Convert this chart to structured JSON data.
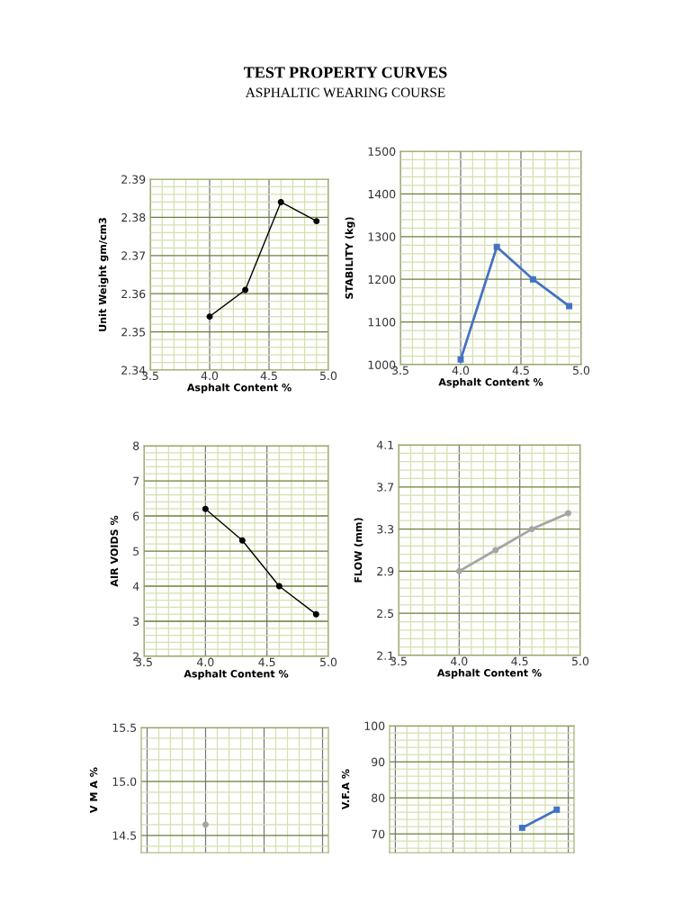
{
  "chart_data": [
    {
      "type": "line",
      "title": "TEST PROPERTY CURVES",
      "subtitle": "ASPHALTIC WEARING COURSE",
      "xlabel": "Asphalt Content %",
      "ylabel": "Unit Weight gm/cm3",
      "x": [
        4.0,
        4.3,
        4.6,
        4.9
      ],
      "series": [
        {
          "color": "#000000",
          "values": [
            2.354,
            2.361,
            2.384,
            2.379
          ]
        }
      ],
      "xlim": [
        3.5,
        5.0
      ],
      "xticks": [
        {
          "value": 3.5,
          "label": "3.5"
        },
        {
          "value": 3.6,
          "label": null
        },
        {
          "value": 3.7,
          "label": null
        },
        {
          "value": 3.8,
          "label": null
        },
        {
          "value": 3.9,
          "label": null
        },
        {
          "value": 4.0,
          "label": "4.0"
        },
        {
          "value": 4.1,
          "label": null
        },
        {
          "value": 4.2,
          "label": null
        },
        {
          "value": 4.3,
          "label": null
        },
        {
          "value": 4.4,
          "label": null
        },
        {
          "value": 4.5,
          "label": "4.5"
        },
        {
          "value": 4.6,
          "label": null
        },
        {
          "value": 4.7,
          "label": null
        },
        {
          "value": 4.8,
          "label": null
        },
        {
          "value": 4.9,
          "label": null
        },
        {
          "value": 5.0,
          "label": "5.0"
        }
      ],
      "ylim": [
        2.34,
        2.39
      ],
      "yticks": [
        2.34,
        {
          "value": 2.342,
          "label": null
        },
        {
          "value": 2.344,
          "label": null
        },
        {
          "value": 2.346,
          "label": null
        },
        {
          "value": 2.348,
          "label": null
        },
        2.35,
        {
          "value": 2.352,
          "label": null
        },
        {
          "value": 2.354,
          "label": null
        },
        {
          "value": 2.356,
          "label": null
        },
        {
          "value": 2.358,
          "label": null
        },
        2.36,
        {
          "value": 2.362,
          "label": null
        },
        {
          "value": 2.364,
          "label": null
        },
        {
          "value": 2.366,
          "label": null
        },
        {
          "value": 2.368,
          "label": null
        },
        2.37,
        {
          "value": 2.372,
          "label": null
        },
        {
          "value": 2.374,
          "label": null
        },
        {
          "value": 2.376,
          "label": null
        },
        {
          "value": 2.378,
          "label": null
        },
        2.38,
        {
          "value": 2.382,
          "label": null
        },
        {
          "value": 2.384,
          "label": null
        },
        {
          "value": 2.386,
          "label": null
        },
        {
          "value": 2.388,
          "label": null
        },
        2.39
      ],
      "grid": true,
      "marker": "circle",
      "line_style": "solid"
    },
    {
      "type": "line",
      "xlabel": "Asphalt Content %",
      "ylabel": "STABILITY (kg)",
      "x": [
        4.0,
        4.3,
        4.6,
        4.9
      ],
      "series": [
        {
          "color": "#4472c4",
          "values": [
            1012,
            1276,
            1200,
            1137
          ]
        }
      ],
      "xlim": [
        3.5,
        5.0
      ],
      "xticks": [
        {
          "value": 3.5,
          "label": "3.5"
        },
        {
          "value": 3.6,
          "label": null
        },
        {
          "value": 3.7,
          "label": null
        },
        {
          "value": 3.8,
          "label": null
        },
        {
          "value": 3.9,
          "label": null
        },
        {
          "value": 4.0,
          "label": "4.0"
        },
        {
          "value": 4.1,
          "label": null
        },
        {
          "value": 4.2,
          "label": null
        },
        {
          "value": 4.3,
          "label": null
        },
        {
          "value": 4.4,
          "label": null
        },
        {
          "value": 4.5,
          "label": "4.5"
        },
        {
          "value": 4.6,
          "label": null
        },
        {
          "value": 4.7,
          "label": null
        },
        {
          "value": 4.8,
          "label": null
        },
        {
          "value": 4.9,
          "label": null
        },
        {
          "value": 5.0,
          "label": "5.0"
        }
      ],
      "ylim": [
        1000,
        1500
      ],
      "yticks": [
        1000,
        {
          "value": 1020,
          "label": null
        },
        {
          "value": 1040,
          "label": null
        },
        {
          "value": 1060,
          "label": null
        },
        {
          "value": 1080,
          "label": null
        },
        1100,
        {
          "value": 1120,
          "label": null
        },
        {
          "value": 1140,
          "label": null
        },
        {
          "value": 1160,
          "label": null
        },
        {
          "value": 1180,
          "label": null
        },
        1200,
        {
          "value": 1220,
          "label": null
        },
        {
          "value": 1240,
          "label": null
        },
        {
          "value": 1260,
          "label": null
        },
        {
          "value": 1280,
          "label": null
        },
        1300,
        {
          "value": 1320,
          "label": null
        },
        {
          "value": 1340,
          "label": null
        },
        {
          "value": 1360,
          "label": null
        },
        {
          "value": 1380,
          "label": null
        },
        1400,
        {
          "value": 1420,
          "label": null
        },
        {
          "value": 1440,
          "label": null
        },
        {
          "value": 1460,
          "label": null
        },
        {
          "value": 1480,
          "label": null
        },
        1500
      ],
      "grid": true,
      "marker": "square",
      "line_style": "solid"
    },
    {
      "type": "line",
      "xlabel": "Asphalt Content %",
      "ylabel": "AIR VOIDS %",
      "x": [
        4.0,
        4.3,
        4.6,
        4.9
      ],
      "series": [
        {
          "color": "#000000",
          "values": [
            6.2,
            5.3,
            4.0,
            3.2
          ]
        }
      ],
      "xlim": [
        3.5,
        5.0
      ],
      "xticks": [
        {
          "value": 3.5,
          "label": "3.5"
        },
        {
          "value": 3.6,
          "label": null
        },
        {
          "value": 3.7,
          "label": null
        },
        {
          "value": 3.8,
          "label": null
        },
        {
          "value": 3.9,
          "label": null
        },
        {
          "value": 4.0,
          "label": "4.0"
        },
        {
          "value": 4.1,
          "label": null
        },
        {
          "value": 4.2,
          "label": null
        },
        {
          "value": 4.3,
          "label": null
        },
        {
          "value": 4.4,
          "label": null
        },
        {
          "value": 4.5,
          "label": "4.5"
        },
        {
          "value": 4.6,
          "label": null
        },
        {
          "value": 4.7,
          "label": null
        },
        {
          "value": 4.8,
          "label": null
        },
        {
          "value": 4.9,
          "label": null
        },
        {
          "value": 5.0,
          "label": "5.0"
        }
      ],
      "ylim": [
        2,
        8
      ],
      "yticks": [
        2,
        {
          "value": 2.2,
          "label": null
        },
        {
          "value": 2.4,
          "label": null
        },
        {
          "value": 2.6,
          "label": null
        },
        {
          "value": 2.8,
          "label": null
        },
        3,
        {
          "value": 3.2,
          "label": null
        },
        {
          "value": 3.4,
          "label": null
        },
        {
          "value": 3.6,
          "label": null
        },
        {
          "value": 3.8,
          "label": null
        },
        4,
        {
          "value": 4.2,
          "label": null
        },
        {
          "value": 4.4,
          "label": null
        },
        {
          "value": 4.6,
          "label": null
        },
        {
          "value": 4.8,
          "label": null
        },
        5,
        {
          "value": 5.2,
          "label": null
        },
        {
          "value": 5.4,
          "label": null
        },
        {
          "value": 5.6,
          "label": null
        },
        {
          "value": 5.8,
          "label": null
        },
        6,
        {
          "value": 6.2,
          "label": null
        },
        {
          "value": 6.4,
          "label": null
        },
        {
          "value": 6.6,
          "label": null
        },
        {
          "value": 6.8,
          "label": null
        },
        7,
        {
          "value": 7.2,
          "label": null
        },
        {
          "value": 7.4,
          "label": null
        },
        {
          "value": 7.6,
          "label": null
        },
        {
          "value": 7.8,
          "label": null
        },
        8
      ],
      "grid": true,
      "marker": "circle",
      "line_style": "solid"
    },
    {
      "type": "line",
      "xlabel": "Asphalt Content %",
      "ylabel": "FLOW (mm)",
      "x": [
        4.0,
        4.3,
        4.6,
        4.9
      ],
      "series": [
        {
          "color": "#a5a5a5",
          "values": [
            2.9,
            3.1,
            3.3,
            3.45
          ]
        }
      ],
      "xlim": [
        3.5,
        5.0
      ],
      "xticks": [
        {
          "value": 3.5,
          "label": "3.5"
        },
        {
          "value": 3.6,
          "label": null
        },
        {
          "value": 3.7,
          "label": null
        },
        {
          "value": 3.8,
          "label": null
        },
        {
          "value": 3.9,
          "label": null
        },
        {
          "value": 4.0,
          "label": "4.0"
        },
        {
          "value": 4.1,
          "label": null
        },
        {
          "value": 4.2,
          "label": null
        },
        {
          "value": 4.3,
          "label": null
        },
        {
          "value": 4.4,
          "label": null
        },
        {
          "value": 4.5,
          "label": "4.5"
        },
        {
          "value": 4.6,
          "label": null
        },
        {
          "value": 4.7,
          "label": null
        },
        {
          "value": 4.8,
          "label": null
        },
        {
          "value": 4.9,
          "label": null
        },
        {
          "value": 5.0,
          "label": "5.0"
        }
      ],
      "ylim": [
        2.1,
        4.1
      ],
      "yticks": [
        2.1,
        {
          "value": 2.18,
          "label": null
        },
        {
          "value": 2.26,
          "label": null
        },
        {
          "value": 2.34,
          "label": null
        },
        {
          "value": 2.42,
          "label": null
        },
        2.5,
        {
          "value": 2.58,
          "label": null
        },
        {
          "value": 2.66,
          "label": null
        },
        {
          "value": 2.74,
          "label": null
        },
        {
          "value": 2.82,
          "label": null
        },
        2.9,
        {
          "value": 2.98,
          "label": null
        },
        {
          "value": 3.06,
          "label": null
        },
        {
          "value": 3.14,
          "label": null
        },
        {
          "value": 3.22,
          "label": null
        },
        3.3,
        {
          "value": 3.38,
          "label": null
        },
        {
          "value": 3.46,
          "label": null
        },
        {
          "value": 3.54,
          "label": null
        },
        {
          "value": 3.62,
          "label": null
        },
        3.7,
        {
          "value": 3.78,
          "label": null
        },
        {
          "value": 3.86,
          "label": null
        },
        {
          "value": 3.94,
          "label": null
        },
        {
          "value": 4.02,
          "label": null
        },
        4.1
      ],
      "grid": true,
      "marker": "circle",
      "line_style": "solid"
    },
    {
      "type": "line",
      "ylabel": "V M A %",
      "categories": [
        null,
        null,
        null,
        null,
        null,
        null,
        null,
        null,
        null,
        null,
        null,
        null,
        null,
        null,
        null,
        null
      ],
      "series": [
        {
          "color": "#a5a5a5",
          "values": [
            null,
            null,
            null,
            null,
            null,
            14.6,
            null,
            null,
            null,
            null,
            null,
            null,
            null,
            null,
            null,
            null
          ]
        }
      ],
      "ylim": [
        14.34,
        15.5
      ],
      "yticks": [
        {
          "value": 14.4,
          "label": null
        },
        {
          "value": 14.5,
          "label": "14.5"
        },
        {
          "value": 14.6,
          "label": null
        },
        {
          "value": 14.7,
          "label": null
        },
        {
          "value": 14.8,
          "label": null
        },
        {
          "value": 14.9,
          "label": null
        },
        {
          "value": 15.0,
          "label": "15.0"
        },
        {
          "value": 15.1,
          "label": null
        },
        {
          "value": 15.2,
          "label": null
        },
        {
          "value": 15.3,
          "label": null
        },
        {
          "value": 15.4,
          "label": null
        },
        {
          "value": 15.5,
          "label": "15.5"
        }
      ],
      "grid": true,
      "marker": "circle",
      "line_style": "solid",
      "tick_labels": "y"
    },
    {
      "type": "line",
      "ylabel": "V.F.A %",
      "categories": [
        null,
        null,
        null,
        null,
        null,
        null,
        null,
        null,
        null,
        null,
        null,
        null,
        null,
        null,
        null,
        null
      ],
      "series": [
        {
          "color": "#4472c4",
          "values": [
            null,
            null,
            null,
            null,
            null,
            null,
            null,
            null,
            null,
            null,
            null,
            71.7,
            null,
            null,
            76.7,
            null
          ]
        }
      ],
      "ylim": [
        64.8,
        100
      ],
      "yticks": [
        {
          "value": 66,
          "label": null
        },
        {
          "value": 68,
          "label": null
        },
        70,
        {
          "value": 72,
          "label": null
        },
        {
          "value": 74,
          "label": null
        },
        {
          "value": 76,
          "label": null
        },
        {
          "value": 78,
          "label": null
        },
        80,
        {
          "value": 82,
          "label": null
        },
        {
          "value": 84,
          "label": null
        },
        {
          "value": 86,
          "label": null
        },
        {
          "value": 88,
          "label": null
        },
        90,
        {
          "value": 92,
          "label": null
        },
        {
          "value": 94,
          "label": null
        },
        {
          "value": 96,
          "label": null
        },
        {
          "value": 98,
          "label": null
        },
        100
      ],
      "grid": true,
      "marker": "square",
      "line_style": "solid",
      "tick_labels": "y"
    }
  ]
}
